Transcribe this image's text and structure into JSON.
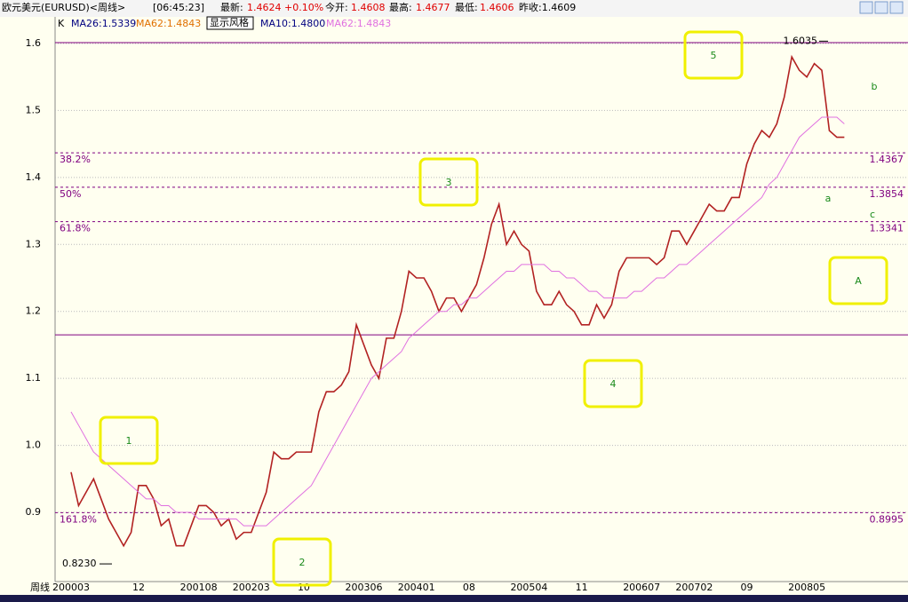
{
  "header": {
    "instrument": "欧元美元(EURUSD)<周线>",
    "time": "[06:45:23]",
    "latest_label": "最新:",
    "latest": "1.4624",
    "change": "+0.10%",
    "open_label": "今开:",
    "open": "1.4608",
    "high_label": "最高:",
    "high": "1.4677",
    "low_label": "最低:",
    "low": "1.4606",
    "prev_close": "昨收:1.4609"
  },
  "legend_row": {
    "k": "K",
    "ma26": "MA26:1.5339",
    "ma62a": "MA62:1.4843",
    "style_button": "显示风格",
    "ma10": "MA10:1.4800",
    "ma62b": "MA62:1.4843"
  },
  "period_label": "周线",
  "chart_data": {
    "type": "line",
    "categories": [
      "200003",
      null,
      null,
      null,
      null,
      null,
      null,
      null,
      null,
      "12",
      null,
      null,
      null,
      null,
      null,
      null,
      null,
      "200108",
      null,
      null,
      null,
      null,
      null,
      null,
      "200203",
      null,
      null,
      null,
      null,
      null,
      null,
      "10",
      null,
      null,
      null,
      null,
      null,
      null,
      null,
      "200306",
      null,
      null,
      null,
      null,
      null,
      null,
      "200401",
      null,
      null,
      null,
      null,
      null,
      null,
      "08",
      null,
      null,
      null,
      null,
      null,
      null,
      null,
      "200504",
      null,
      null,
      null,
      null,
      null,
      null,
      "11",
      null,
      null,
      null,
      null,
      null,
      null,
      null,
      "200607",
      null,
      null,
      null,
      null,
      null,
      null,
      "200702",
      null,
      null,
      null,
      null,
      null,
      null,
      "09",
      null,
      null,
      null,
      null,
      null,
      null,
      null,
      "200805",
      null,
      null,
      null,
      null,
      null
    ],
    "series": [
      {
        "name": "EURUSD",
        "color": "#b22222",
        "values": [
          0.96,
          0.91,
          0.93,
          0.95,
          0.92,
          0.89,
          0.87,
          0.85,
          0.87,
          0.94,
          0.94,
          0.92,
          0.88,
          0.89,
          0.85,
          0.85,
          0.88,
          0.91,
          0.91,
          0.9,
          0.88,
          0.89,
          0.86,
          0.87,
          0.87,
          0.9,
          0.93,
          0.99,
          0.98,
          0.98,
          0.99,
          0.99,
          0.99,
          1.05,
          1.08,
          1.08,
          1.09,
          1.11,
          1.18,
          1.15,
          1.12,
          1.1,
          1.16,
          1.16,
          1.2,
          1.26,
          1.25,
          1.25,
          1.23,
          1.2,
          1.22,
          1.22,
          1.2,
          1.22,
          1.24,
          1.28,
          1.33,
          1.36,
          1.3,
          1.32,
          1.3,
          1.29,
          1.23,
          1.21,
          1.21,
          1.23,
          1.21,
          1.2,
          1.18,
          1.18,
          1.21,
          1.19,
          1.21,
          1.26,
          1.28,
          1.28,
          1.28,
          1.28,
          1.27,
          1.28,
          1.32,
          1.32,
          1.3,
          1.32,
          1.34,
          1.36,
          1.35,
          1.35,
          1.37,
          1.37,
          1.42,
          1.45,
          1.47,
          1.46,
          1.48,
          1.52,
          1.58,
          1.56,
          1.55,
          1.57,
          1.56,
          1.47,
          1.46,
          1.46
        ]
      },
      {
        "name": "MA62",
        "color": "#e070e0",
        "values": [
          1.05,
          1.03,
          1.01,
          0.99,
          0.98,
          0.97,
          0.96,
          0.95,
          0.94,
          0.93,
          0.92,
          0.92,
          0.91,
          0.91,
          0.9,
          0.9,
          0.9,
          0.89,
          0.89,
          0.89,
          0.89,
          0.89,
          0.89,
          0.88,
          0.88,
          0.88,
          0.88,
          0.89,
          0.9,
          0.91,
          0.92,
          0.93,
          0.94,
          0.96,
          0.98,
          1.0,
          1.02,
          1.04,
          1.06,
          1.08,
          1.1,
          1.11,
          1.12,
          1.13,
          1.14,
          1.16,
          1.17,
          1.18,
          1.19,
          1.2,
          1.2,
          1.21,
          1.21,
          1.22,
          1.22,
          1.23,
          1.24,
          1.25,
          1.26,
          1.26,
          1.27,
          1.27,
          1.27,
          1.27,
          1.26,
          1.26,
          1.25,
          1.25,
          1.24,
          1.23,
          1.23,
          1.22,
          1.22,
          1.22,
          1.22,
          1.23,
          1.23,
          1.24,
          1.25,
          1.25,
          1.26,
          1.27,
          1.27,
          1.28,
          1.29,
          1.3,
          1.31,
          1.32,
          1.33,
          1.34,
          1.35,
          1.36,
          1.37,
          1.39,
          1.4,
          1.42,
          1.44,
          1.46,
          1.47,
          1.48,
          1.49,
          1.49,
          1.49,
          1.48
        ]
      }
    ],
    "ylim": [
      0.8,
      1.6
    ],
    "yticks": [
      0.9,
      {
        "value": 1,
        "label": "1.0"
      },
      1.1,
      1.2,
      1.3,
      1.4,
      1.5,
      1.6
    ],
    "levels": [
      {
        "label": "38.2%",
        "value": 1.4367
      },
      {
        "label": "50%",
        "value": 1.3854
      },
      {
        "label": "61.8%",
        "value": 1.3341
      },
      {
        "label": "161.8%",
        "value": 0.8995
      }
    ],
    "support_line": 1.165,
    "peak_label": 1.6035,
    "trough_label": {
      "value": 0.823,
      "label": "0.8230"
    },
    "wave_labels": [
      "1",
      "2",
      "3",
      "4",
      "5",
      "A",
      "a",
      "b",
      "c"
    ]
  }
}
